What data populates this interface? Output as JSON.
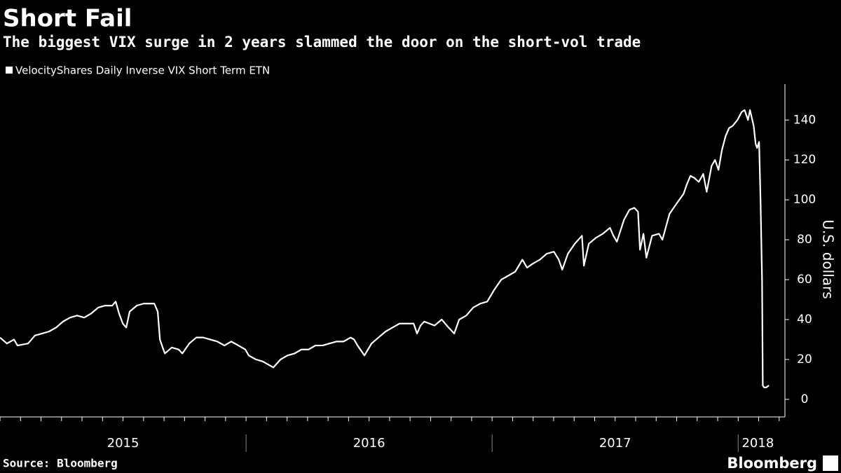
{
  "chart_data": {
    "type": "line",
    "title": "Short Fail",
    "subtitle": "The biggest VIX surge in 2 years slammed the door on the short-vol trade",
    "y_label": "U.S. dollars",
    "source": "Source: Bloomberg",
    "logo": "Bloomberg",
    "xlim": [
      2015,
      2018.19
    ],
    "xticks": [
      {
        "value": 2015.5,
        "label": "2015"
      },
      {
        "value": 2016.5,
        "label": "2016"
      },
      {
        "value": 2017.5,
        "label": "2017"
      },
      {
        "value": 2018.08,
        "label": "2018"
      }
    ],
    "ylim": [
      -8.8,
      158
    ],
    "yticks": [
      0,
      20,
      40,
      60,
      80,
      100,
      120,
      140
    ],
    "x": [
      2015.0,
      2015.028,
      2015.057,
      2015.071,
      2015.114,
      2015.142,
      2015.171,
      2015.199,
      2015.228,
      2015.256,
      2015.285,
      2015.313,
      2015.342,
      2015.37,
      2015.399,
      2015.427,
      2015.456,
      2015.47,
      2015.484,
      2015.499,
      2015.513,
      2015.527,
      2015.556,
      2015.584,
      2015.613,
      2015.627,
      2015.641,
      2015.65,
      2015.661,
      2015.67,
      2015.698,
      2015.726,
      2015.741,
      2015.769,
      2015.798,
      2015.826,
      2015.855,
      2015.883,
      2015.912,
      2015.94,
      2015.969,
      2015.997,
      2016.011,
      2016.04,
      2016.068,
      2016.111,
      2016.14,
      2016.168,
      2016.197,
      2016.225,
      2016.254,
      2016.282,
      2016.311,
      2016.339,
      2016.368,
      2016.396,
      2016.425,
      2016.439,
      2016.453,
      2016.481,
      2016.51,
      2016.538,
      2016.567,
      2016.595,
      2016.624,
      2016.652,
      2016.681,
      2016.695,
      2016.709,
      2016.724,
      2016.766,
      2016.795,
      2016.823,
      2016.846,
      2016.866,
      2016.895,
      2016.923,
      2016.952,
      2016.98,
      2017.009,
      2017.037,
      2017.066,
      2017.094,
      2017.123,
      2017.142,
      2017.165,
      2017.194,
      2017.222,
      2017.251,
      2017.271,
      2017.285,
      2017.308,
      2017.336,
      2017.365,
      2017.373,
      2017.393,
      2017.422,
      2017.45,
      2017.479,
      2017.493,
      2017.507,
      2017.536,
      2017.558,
      2017.578,
      2017.593,
      2017.601,
      2017.615,
      2017.627,
      2017.65,
      2017.678,
      2017.692,
      2017.721,
      2017.749,
      2017.778,
      2017.792,
      2017.806,
      2017.821,
      2017.84,
      2017.858,
      2017.872,
      2017.892,
      2017.906,
      2017.92,
      2017.934,
      2017.949,
      2017.963,
      2017.977,
      2017.997,
      2018.014,
      2018.026,
      2018.04,
      2018.048,
      2018.063,
      2018.071,
      2018.077,
      2018.085,
      2018.091,
      2018.097,
      2018.1,
      2018.105,
      2018.114,
      2018.125
    ],
    "series": [
      {
        "name": "VelocityShares Daily Inverse VIX Short Term ETN",
        "color": "#ffffff",
        "values": [
          31,
          28,
          30,
          27,
          28,
          32,
          33,
          34,
          36,
          39,
          41,
          42,
          41,
          43,
          46,
          47,
          47,
          49,
          43,
          38,
          36,
          44,
          47,
          48,
          48,
          48,
          44,
          30,
          26,
          23,
          26,
          25,
          23,
          28,
          31,
          31,
          30,
          29,
          27,
          29,
          27,
          25,
          22,
          20,
          19,
          16,
          20,
          22,
          23,
          25,
          25,
          27,
          27,
          28,
          29,
          29,
          31,
          30,
          27,
          22,
          28,
          31,
          34,
          36,
          38,
          38,
          38,
          33,
          37,
          39,
          37,
          40,
          36,
          33,
          40,
          42,
          46,
          48,
          49,
          55,
          60,
          62,
          64,
          70,
          66,
          68,
          70,
          73,
          74,
          70,
          65,
          73,
          78,
          82,
          67,
          78,
          81,
          83,
          86,
          82,
          79,
          90,
          95,
          96,
          94,
          75,
          83,
          71,
          82,
          83,
          80,
          93,
          98,
          103,
          108,
          112,
          111,
          109,
          113,
          104,
          117,
          120,
          115,
          125,
          132,
          136,
          137,
          140,
          144,
          145,
          140,
          145,
          137,
          128,
          126,
          129,
          99,
          60,
          7,
          6,
          6,
          7
        ]
      }
    ]
  }
}
